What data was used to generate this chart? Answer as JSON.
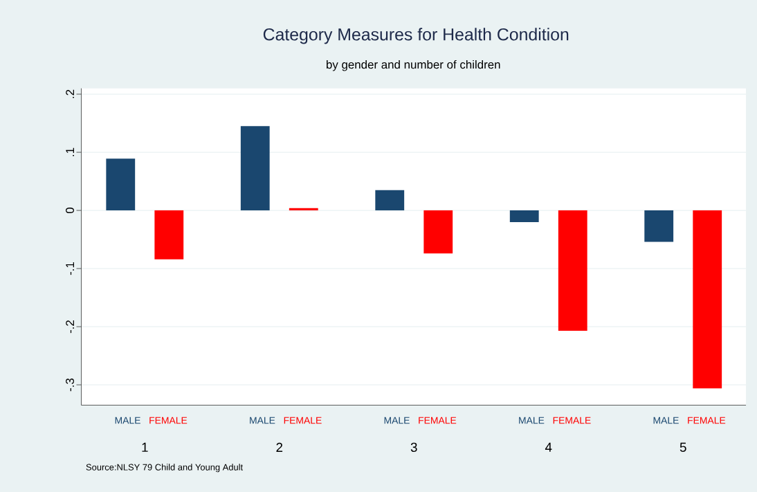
{
  "chart_data": {
    "type": "bar",
    "title": "Category Measures for Health Condition",
    "subtitle": "by gender and number of children",
    "categories": [
      "1",
      "2",
      "3",
      "4",
      "5"
    ],
    "series": [
      {
        "name": "MALE",
        "color": "#1a476f",
        "values": [
          0.089,
          0.145,
          0.035,
          -0.02,
          -0.054
        ]
      },
      {
        "name": "FEMALE",
        "color": "#ff0000",
        "values": [
          -0.084,
          0.004,
          -0.074,
          -0.207,
          -0.306
        ]
      }
    ],
    "ylim": [
      -0.335,
      0.21
    ],
    "yticks": [
      {
        "value": -0.3,
        "label": "-.3"
      },
      {
        "value": -0.2,
        "label": "-.2"
      },
      {
        "value": -0.1,
        "label": "-.1"
      },
      0,
      {
        "value": 0.1,
        "label": ".1"
      },
      {
        "value": 0.2,
        "label": ".2"
      }
    ],
    "grid": "y",
    "annotations": [
      "Source:NLSY 79 Child and Young Adult"
    ]
  }
}
